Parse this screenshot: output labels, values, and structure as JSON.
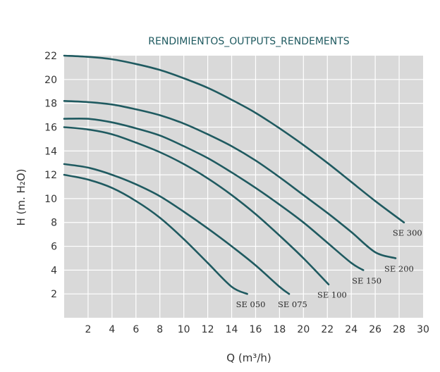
{
  "chart_data": {
    "type": "line",
    "title": "RENDIMIENTOS_OUTPUTS_RENDEMENTS",
    "xlabel": "Q (m³/h)",
    "ylabel": "H (m. H₂O)",
    "xlim": [
      0,
      30
    ],
    "ylim": [
      0,
      22
    ],
    "xticks": [
      2,
      4,
      6,
      8,
      10,
      12,
      14,
      16,
      18,
      20,
      22,
      24,
      26,
      28,
      30
    ],
    "yticks": [
      2,
      4,
      6,
      8,
      10,
      12,
      14,
      16,
      18,
      20,
      22
    ],
    "grid": true,
    "background": "#d9d9d9",
    "line_color": "#1f5a60",
    "series": [
      {
        "name": "SE 050",
        "x": [
          0,
          2,
          4,
          6,
          8,
          10,
          12,
          14,
          15.3
        ],
        "y": [
          12,
          11.6,
          10.9,
          9.8,
          8.4,
          6.6,
          4.6,
          2.6,
          2
        ]
      },
      {
        "name": "SE 075",
        "x": [
          0,
          2,
          4,
          6,
          8,
          10,
          12,
          14,
          16,
          18,
          18.8
        ],
        "y": [
          12.9,
          12.6,
          12,
          11.2,
          10.2,
          8.9,
          7.5,
          6,
          4.4,
          2.6,
          2
        ]
      },
      {
        "name": "SE 100",
        "x": [
          0,
          2,
          4,
          6,
          8,
          10,
          12,
          14,
          16,
          18,
          20,
          22.1
        ],
        "y": [
          16,
          15.8,
          15.4,
          14.7,
          13.9,
          12.9,
          11.7,
          10.3,
          8.7,
          6.9,
          5,
          2.8
        ]
      },
      {
        "name": "SE 150",
        "x": [
          0,
          2,
          4,
          6,
          8,
          10,
          12,
          14,
          16,
          18,
          20,
          22,
          24,
          25
        ],
        "y": [
          16.7,
          16.7,
          16.4,
          15.9,
          15.3,
          14.4,
          13.4,
          12.2,
          10.9,
          9.5,
          8,
          6.3,
          4.6,
          4
        ]
      },
      {
        "name": "SE 200",
        "x": [
          0,
          2,
          4,
          6,
          8,
          10,
          12,
          14,
          16,
          18,
          20,
          22,
          24,
          26,
          27.7
        ],
        "y": [
          18.2,
          18.1,
          17.9,
          17.5,
          17,
          16.3,
          15.4,
          14.4,
          13.2,
          11.8,
          10.3,
          8.8,
          7.2,
          5.5,
          5
        ]
      },
      {
        "name": "SE 300",
        "x": [
          0,
          2,
          4,
          6,
          8,
          10,
          12,
          14,
          16,
          18,
          20,
          22,
          24,
          26,
          28.4
        ],
        "y": [
          22,
          21.9,
          21.7,
          21.3,
          20.8,
          20.1,
          19.3,
          18.3,
          17.2,
          15.9,
          14.5,
          13,
          11.4,
          9.8,
          8
        ]
      }
    ]
  }
}
